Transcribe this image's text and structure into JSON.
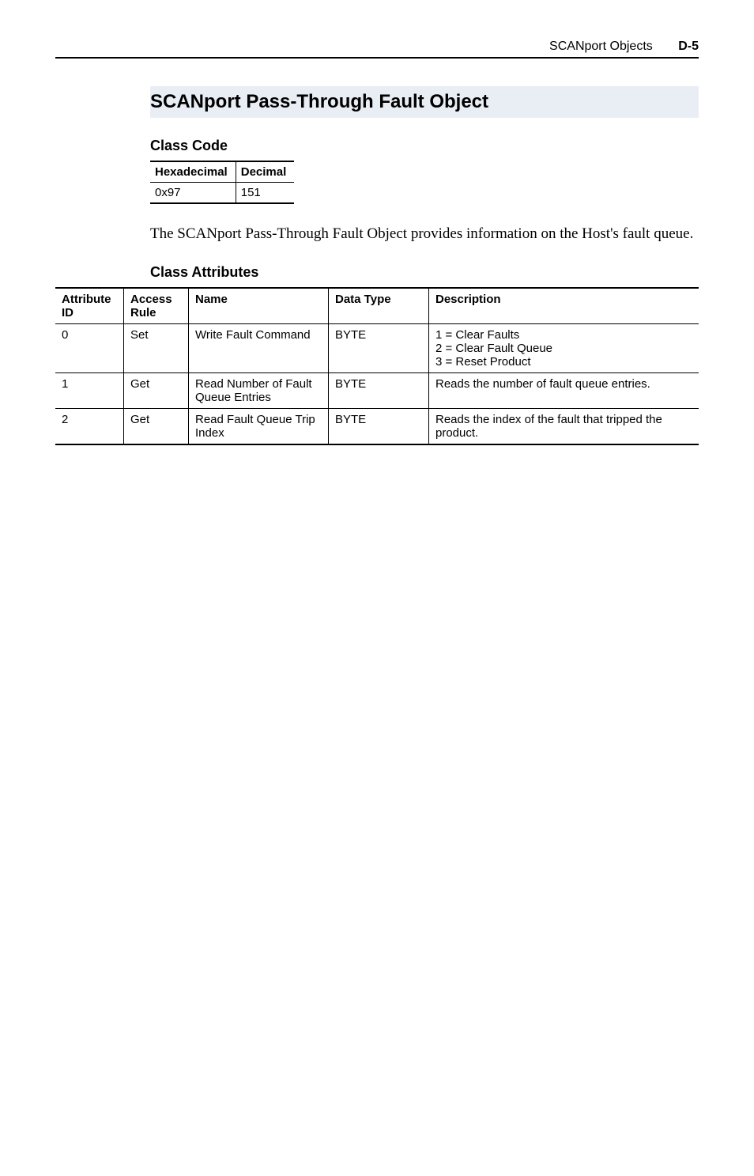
{
  "header": {
    "title": "SCANport Objects",
    "page_ref": "D-5"
  },
  "section": {
    "title": "SCANport Pass-Through Fault Object"
  },
  "class_code": {
    "heading": "Class Code",
    "columns": [
      "Hexadecimal",
      "Decimal"
    ],
    "row": [
      "0x97",
      "151"
    ]
  },
  "body": {
    "paragraph": "The SCANport Pass-Through Fault Object provides information on the Host's fault queue."
  },
  "class_attributes": {
    "heading": "Class Attributes",
    "columns": [
      "Attribute ID",
      "Access Rule",
      "Name",
      "Data Type",
      "Description"
    ],
    "rows": [
      {
        "id": "0",
        "access": "Set",
        "name": "Write Fault Command",
        "datatype": "BYTE",
        "description": "1 = Clear Faults\n2 = Clear Fault Queue\n3 = Reset Product"
      },
      {
        "id": "1",
        "access": "Get",
        "name": "Read Number of Fault Queue Entries",
        "datatype": "BYTE",
        "description": "Reads the number of fault queue entries."
      },
      {
        "id": "2",
        "access": "Get",
        "name": "Read Fault Queue Trip Index",
        "datatype": "BYTE",
        "description": "Reads the index of the fault that tripped the product."
      }
    ]
  }
}
